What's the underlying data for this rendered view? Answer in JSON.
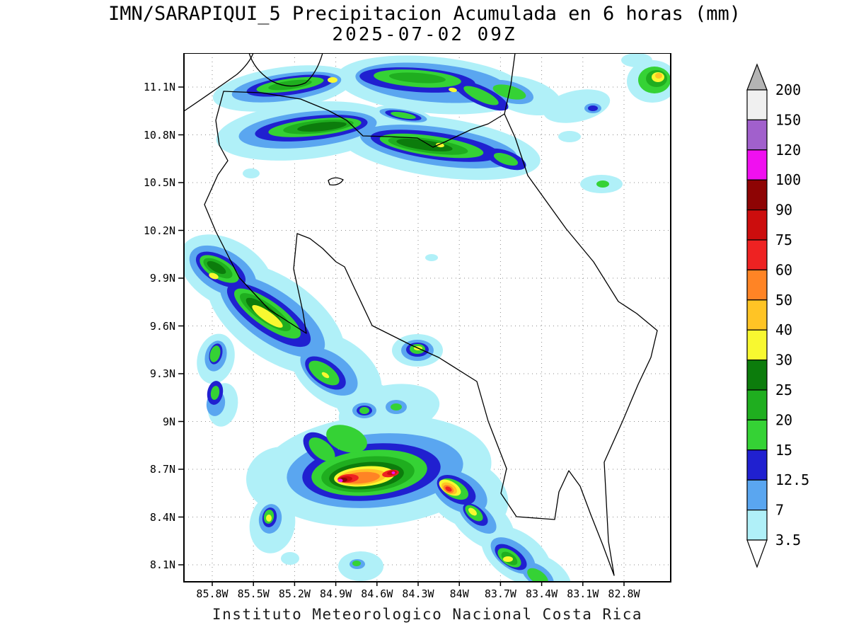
{
  "title": {
    "line1": "IMN/SARAPIQUI_5 Precipitacion Acumulada en 6 horas (mm)",
    "line2": "2025-07-02 09Z"
  },
  "caption": "Instituto Meteorologico Nacional Costa Rica",
  "axes": {
    "lat": {
      "ticks": [
        {
          "label": "11.1N",
          "value": 11.1
        },
        {
          "label": "10.8N",
          "value": 10.8
        },
        {
          "label": "10.5N",
          "value": 10.5
        },
        {
          "label": "10.2N",
          "value": 10.2
        },
        {
          "label": "9.9N",
          "value": 9.9
        },
        {
          "label": "9.6N",
          "value": 9.6
        },
        {
          "label": "9.3N",
          "value": 9.3
        },
        {
          "label": "9N",
          "value": 9.0
        },
        {
          "label": "8.7N",
          "value": 8.7
        },
        {
          "label": "8.4N",
          "value": 8.4
        },
        {
          "label": "8.1N",
          "value": 8.1
        }
      ]
    },
    "lon": {
      "ticks": [
        {
          "label": "85.8W",
          "value": 85.8
        },
        {
          "label": "85.5W",
          "value": 85.5
        },
        {
          "label": "85.2W",
          "value": 85.2
        },
        {
          "label": "84.9W",
          "value": 84.9
        },
        {
          "label": "84.6W",
          "value": 84.6
        },
        {
          "label": "84.3W",
          "value": 84.3
        },
        {
          "label": "84W",
          "value": 84.0
        },
        {
          "label": "83.7W",
          "value": 83.7
        },
        {
          "label": "83.4W",
          "value": 83.4
        },
        {
          "label": "83.1W",
          "value": 83.1
        },
        {
          "label": "82.8W",
          "value": 82.8
        }
      ]
    }
  },
  "colorbar": {
    "labels_top_to_bottom": [
      "200",
      "150",
      "120",
      "100",
      "90",
      "75",
      "60",
      "50",
      "40",
      "30",
      "25",
      "20",
      "15",
      "12.5",
      "7",
      "3.5"
    ],
    "segment_colors_top_to_bottom": [
      "#f0f0f0",
      "#a160cc",
      "#f010f0",
      "#8e0404",
      "#cc0d0d",
      "#ee2222",
      "#ff8425",
      "#ffc425",
      "#f8f830",
      "#0c7c0c",
      "#1fae1f",
      "#35d235",
      "#2020d0",
      "#5aa6f0",
      "#b0f0f8"
    ],
    "over_color": "#b4b4b4",
    "under_color": "#ffffff"
  },
  "map": {
    "palette": {
      "c35": "#b0f0f8",
      "c7": "#5aa6f0",
      "c125": "#2020d0",
      "c15": "#35d235",
      "c20": "#1fae1f",
      "c25": "#0c7c0c",
      "c30": "#f8f830",
      "c40": "#ffc425",
      "c50": "#ff8425",
      "c60": "#ee2222",
      "c75": "#cc0d0d",
      "c90": "#8e0404",
      "c100": "#f010f0",
      "c120": "#a160cc",
      "c150": "#f0f0f0",
      "c200": "#b4b4b4"
    },
    "outline_color": "#000000",
    "grid_color": "#8c8c8c"
  }
}
